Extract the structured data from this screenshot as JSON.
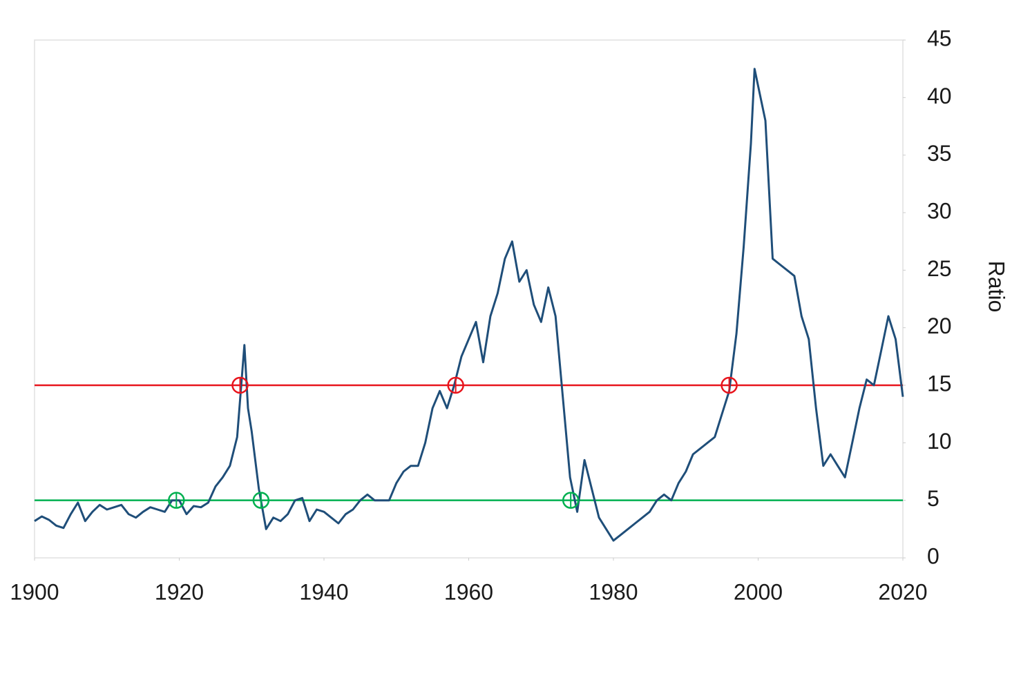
{
  "chart_data": {
    "type": "line",
    "y_label": "Ratio",
    "x": [
      1900,
      1901,
      1902,
      1903,
      1904,
      1905,
      1906,
      1907,
      1908,
      1909,
      1910,
      1911,
      1912,
      1913,
      1914,
      1915,
      1916,
      1917,
      1918,
      1919,
      1920,
      1921,
      1922,
      1923,
      1924,
      1925,
      1926,
      1927,
      1928,
      1929,
      1929.5,
      1930,
      1931,
      1932,
      1933,
      1934,
      1935,
      1936,
      1937,
      1938,
      1939,
      1940,
      1941,
      1942,
      1943,
      1944,
      1945,
      1946,
      1947,
      1948,
      1949,
      1950,
      1951,
      1952,
      1953,
      1954,
      1955,
      1956,
      1957,
      1958,
      1959,
      1960,
      1961,
      1962,
      1963,
      1964,
      1965,
      1966,
      1967,
      1968,
      1969,
      1970,
      1971,
      1972,
      1973,
      1974,
      1975,
      1976,
      1977,
      1978,
      1979,
      1980,
      1981,
      1982,
      1983,
      1984,
      1985,
      1986,
      1987,
      1988,
      1989,
      1990,
      1991,
      1992,
      1993,
      1994,
      1995,
      1996,
      1997,
      1998,
      1999,
      1999.5,
      2000,
      2001,
      2002,
      2003,
      2004,
      2005,
      2006,
      2007,
      2008,
      2009,
      2010,
      2011,
      2012,
      2013,
      2014,
      2015,
      2016,
      2017,
      2018,
      2019,
      2020
    ],
    "series": [
      {
        "name": "Ratio",
        "color": "#1f4e79",
        "values": [
          3.2,
          3.6,
          3.3,
          2.8,
          2.6,
          3.8,
          4.8,
          3.2,
          4.0,
          4.6,
          4.2,
          4.4,
          4.6,
          3.8,
          3.5,
          4.0,
          4.4,
          4.2,
          4.0,
          5.0,
          5.0,
          3.8,
          4.5,
          4.4,
          4.8,
          6.2,
          7.0,
          8.0,
          10.5,
          18.5,
          13.0,
          11.0,
          6.0,
          2.5,
          3.5,
          3.2,
          3.8,
          5.0,
          5.2,
          3.2,
          4.2,
          4.0,
          3.5,
          3.0,
          3.8,
          4.2,
          5.0,
          5.5,
          5.0,
          5.0,
          5.0,
          6.5,
          7.5,
          8.0,
          8.0,
          10.0,
          13.0,
          14.5,
          13.0,
          15.0,
          17.5,
          19.0,
          20.5,
          17.0,
          21.0,
          23.0,
          26.0,
          27.5,
          24.0,
          25.0,
          22.0,
          20.5,
          23.5,
          21.0,
          14.0,
          7.0,
          4.0,
          8.5,
          6.0,
          3.5,
          2.5,
          1.5,
          2.0,
          2.5,
          3.0,
          3.5,
          4.0,
          5.0,
          5.5,
          5.0,
          6.5,
          7.5,
          9.0,
          9.5,
          10.0,
          10.5,
          12.5,
          14.5,
          19.5,
          27.0,
          36.0,
          42.5,
          41.0,
          38.0,
          26.0,
          25.5,
          25.0,
          24.5,
          21.0,
          19.0,
          13.0,
          8.0,
          9.0,
          8.0,
          7.0,
          10.0,
          13.0,
          15.5,
          15.0,
          18.0,
          21.0,
          19.0,
          14.0
        ]
      }
    ],
    "hlines": [
      {
        "value": 15,
        "color": "#e8141c"
      },
      {
        "value": 5,
        "color": "#00b050"
      }
    ],
    "markers": [
      {
        "x": 1928.4,
        "y": 15,
        "color": "#e8141c"
      },
      {
        "x": 1958.2,
        "y": 15,
        "color": "#e8141c"
      },
      {
        "x": 1996.0,
        "y": 15,
        "color": "#e8141c"
      },
      {
        "x": 1919.6,
        "y": 5,
        "color": "#00b050"
      },
      {
        "x": 1931.3,
        "y": 5,
        "color": "#00b050"
      },
      {
        "x": 1974.1,
        "y": 5,
        "color": "#00b050"
      }
    ],
    "xlim": [
      1900,
      2020
    ],
    "xticks": [
      1900,
      1920,
      1940,
      1960,
      1980,
      2000,
      2020
    ],
    "ylim": [
      0,
      45
    ],
    "yticks": [
      0,
      5,
      10,
      15,
      20,
      25,
      30,
      35,
      40,
      45
    ],
    "y_axis_side": "right"
  }
}
